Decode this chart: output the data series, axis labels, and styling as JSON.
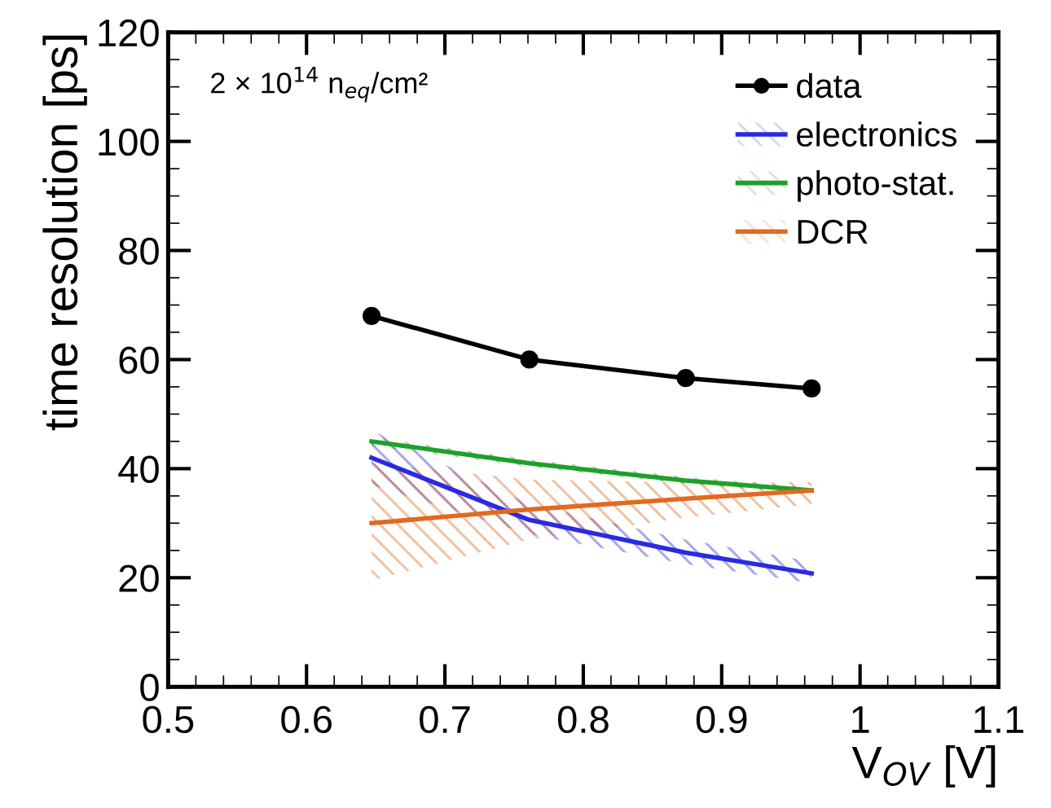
{
  "chart_data": {
    "type": "line",
    "xlabel": "V$_{OV}$ [V]",
    "ylabel": "time resolution [ps]",
    "x": [
      0.647,
      0.761,
      0.874,
      0.965
    ],
    "series": [
      {
        "name": "data",
        "color": "#000000",
        "values": [
          68,
          60,
          56.6,
          54.7
        ],
        "marker": "circle"
      },
      {
        "name": "electronics",
        "color": "#2a2ae0",
        "values": [
          42,
          30.6,
          24.6,
          20.8
        ],
        "lower": [
          37,
          28,
          22.5,
          19
        ],
        "upper": [
          47,
          33.5,
          27,
          23
        ]
      },
      {
        "name": "photo-stat.",
        "color": "#1fa02a",
        "values": [
          45,
          41,
          37.8,
          36
        ],
        "lower": [
          44.2,
          40.3,
          37.2,
          35.4
        ],
        "upper": [
          45.8,
          41.7,
          38.5,
          36.6
        ]
      },
      {
        "name": "DCR",
        "color": "#e06a20",
        "values": [
          30,
          32.5,
          34.5,
          36
        ],
        "lower": [
          19.5,
          27,
          31,
          33.5
        ],
        "upper": [
          41,
          38,
          37.5,
          37.5
        ]
      }
    ],
    "xlim": [
      0.5,
      1.1
    ],
    "xticks": [
      0.5,
      0.6,
      0.7,
      0.8,
      0.9,
      {
        "value": 1.0,
        "label": "1"
      },
      1.1
    ],
    "ylim": [
      0,
      120
    ],
    "yticks": [
      0,
      20,
      40,
      60,
      80,
      100,
      120
    ],
    "annotations": [
      "2 × 10$^{14}$ n$_{eq}$/cm²"
    ],
    "legend": "top right",
    "grid": false,
    "line_style": "solid"
  }
}
